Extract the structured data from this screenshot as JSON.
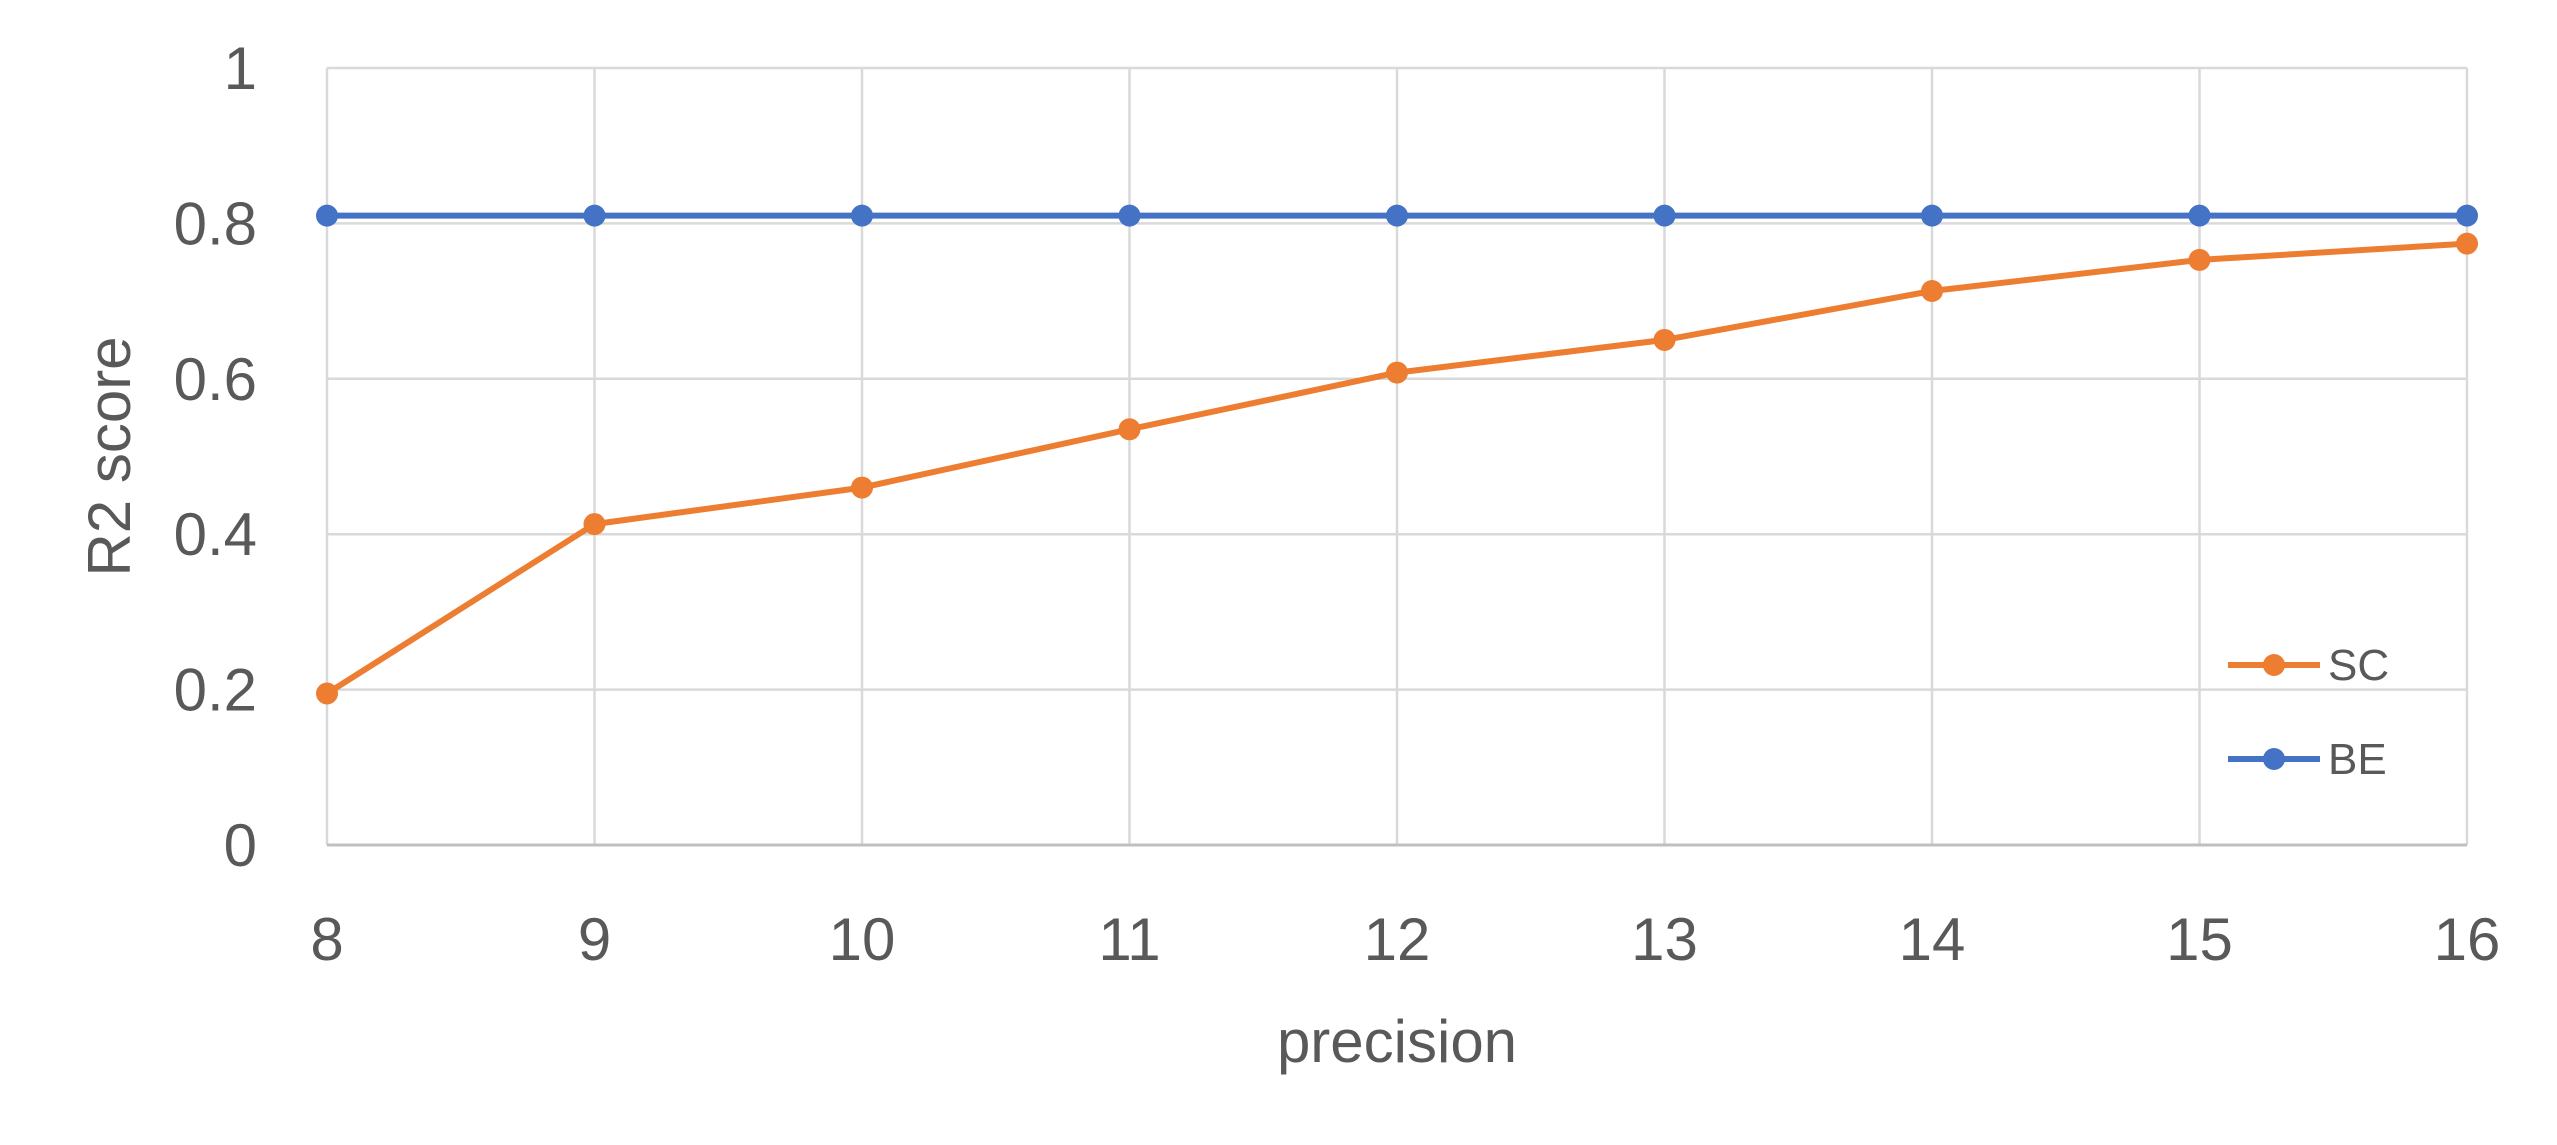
{
  "chart_data": {
    "type": "line",
    "title": "",
    "xlabel": "precision",
    "ylabel": "R2 score",
    "x": [
      8,
      9,
      10,
      11,
      12,
      13,
      14,
      15,
      16
    ],
    "x_tick_labels": [
      "8",
      "9",
      "10",
      "11",
      "12",
      "13",
      "14",
      "15",
      "16"
    ],
    "ylim": [
      0,
      1
    ],
    "y_ticks": [
      0,
      0.2,
      0.4,
      0.6,
      0.8,
      1
    ],
    "y_tick_labels": [
      "0",
      "0.2",
      "0.4",
      "0.6",
      "0.8",
      "1"
    ],
    "grid": true,
    "legend_position": "bottom-right",
    "series": [
      {
        "name": "SC",
        "color": "#ED7D31",
        "values": [
          0.195,
          0.413,
          0.46,
          0.535,
          0.608,
          0.65,
          0.713,
          0.753,
          0.774
        ]
      },
      {
        "name": "BE",
        "color": "#4472C4",
        "values": [
          0.81,
          0.81,
          0.81,
          0.81,
          0.81,
          0.81,
          0.81,
          0.81,
          0.81
        ]
      }
    ]
  }
}
